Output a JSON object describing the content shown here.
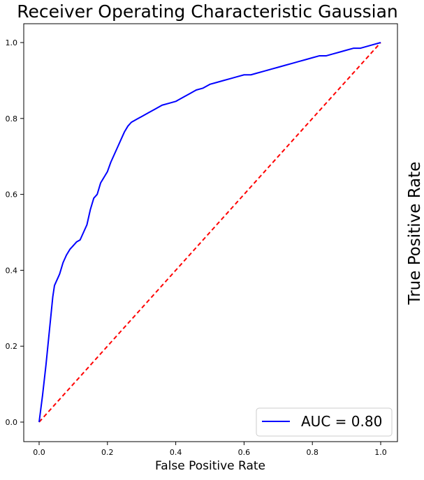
{
  "chart_data": {
    "type": "line",
    "title": "Receiver Operating Characteristic Gaussian",
    "xlabel": "False Positive Rate",
    "ylabel": "True Positive Rate",
    "xlim": [
      0.0,
      1.0
    ],
    "ylim": [
      0.0,
      1.0
    ],
    "x_ticks": [
      "0.0",
      "0.2",
      "0.4",
      "0.6",
      "0.8",
      "1.0"
    ],
    "y_ticks": [
      "0.0",
      "0.2",
      "0.4",
      "0.6",
      "0.8",
      "1.0"
    ],
    "grid": false,
    "legend_position": "lower-right",
    "series": [
      {
        "name": "AUC = 0.80",
        "color": "#0000ff",
        "style": "solid",
        "x": [
          0.0,
          0.01,
          0.02,
          0.03,
          0.04,
          0.045,
          0.05,
          0.055,
          0.06,
          0.07,
          0.08,
          0.09,
          0.1,
          0.11,
          0.12,
          0.13,
          0.14,
          0.15,
          0.16,
          0.17,
          0.18,
          0.19,
          0.2,
          0.21,
          0.22,
          0.23,
          0.24,
          0.25,
          0.26,
          0.27,
          0.28,
          0.29,
          0.3,
          0.32,
          0.34,
          0.36,
          0.38,
          0.4,
          0.42,
          0.44,
          0.46,
          0.48,
          0.5,
          0.52,
          0.54,
          0.56,
          0.58,
          0.6,
          0.62,
          0.64,
          0.66,
          0.68,
          0.7,
          0.72,
          0.74,
          0.76,
          0.78,
          0.8,
          0.82,
          0.84,
          0.86,
          0.88,
          0.9,
          0.92,
          0.94,
          0.96,
          0.98,
          1.0
        ],
        "y": [
          0.0,
          0.07,
          0.15,
          0.24,
          0.33,
          0.36,
          0.37,
          0.38,
          0.39,
          0.42,
          0.44,
          0.455,
          0.465,
          0.475,
          0.48,
          0.5,
          0.52,
          0.56,
          0.59,
          0.6,
          0.63,
          0.645,
          0.66,
          0.685,
          0.705,
          0.725,
          0.745,
          0.765,
          0.78,
          0.79,
          0.795,
          0.8,
          0.805,
          0.815,
          0.825,
          0.835,
          0.84,
          0.845,
          0.855,
          0.865,
          0.875,
          0.88,
          0.89,
          0.895,
          0.9,
          0.905,
          0.91,
          0.915,
          0.915,
          0.92,
          0.925,
          0.93,
          0.935,
          0.94,
          0.945,
          0.95,
          0.955,
          0.96,
          0.965,
          0.965,
          0.97,
          0.975,
          0.98,
          0.985,
          0.985,
          0.99,
          0.995,
          1.0
        ]
      },
      {
        "color": "#ff0000",
        "style": "dashed",
        "x": [
          0.0,
          1.0
        ],
        "y": [
          0.0,
          1.0
        ]
      }
    ]
  }
}
